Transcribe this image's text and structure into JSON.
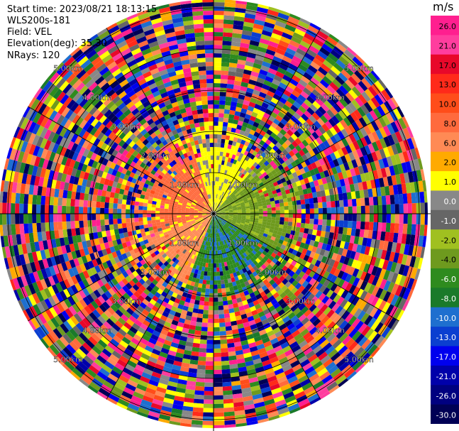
{
  "header": {
    "start_time": "Start time: 2023/08/21 18:13:15",
    "instrument": "WLS200s-181",
    "field": "Field: VEL",
    "elevation": "Elevation(deg): 35.30",
    "nrays": "NRays: 120"
  },
  "range_labels": [
    "1.00km",
    "2.00km",
    "3.00km",
    "4.00km",
    "5.00km"
  ],
  "colorbar": {
    "unit": "m/s",
    "ticks": [
      "26.0",
      "21.0",
      "17.0",
      "13.0",
      "10.0",
      "8.0",
      "6.0",
      "2.0",
      "1.0",
      "0.0",
      "-1.0",
      "-2.0",
      "-4.0",
      "-6.0",
      "-8.0",
      "-10.0",
      "-13.0",
      "-17.0",
      "-21.0",
      "-26.0",
      "-30.0"
    ],
    "colors": [
      "#ff1f8f",
      "#ff3d9e",
      "#e8082a",
      "#ff2a1a",
      "#ff4d1a",
      "#ff6a3d",
      "#ff8a55",
      "#ffaa00",
      "#ffff00",
      "#888888",
      "#666666",
      "#a0c020",
      "#6e9a1e",
      "#2e8b1e",
      "#1a7a2a",
      "#1e6fcf",
      "#0b3fd0",
      "#0000ee",
      "#0000aa",
      "#000080",
      "#000055"
    ]
  },
  "chart_data": {
    "type": "heatmap",
    "field": "VEL",
    "units": "m/s",
    "nrays": 120,
    "elevation_deg": 35.3,
    "range_rings_km": [
      1,
      2,
      3,
      4,
      5
    ],
    "colorbar_range": [
      -30.0,
      26.0
    ]
  }
}
